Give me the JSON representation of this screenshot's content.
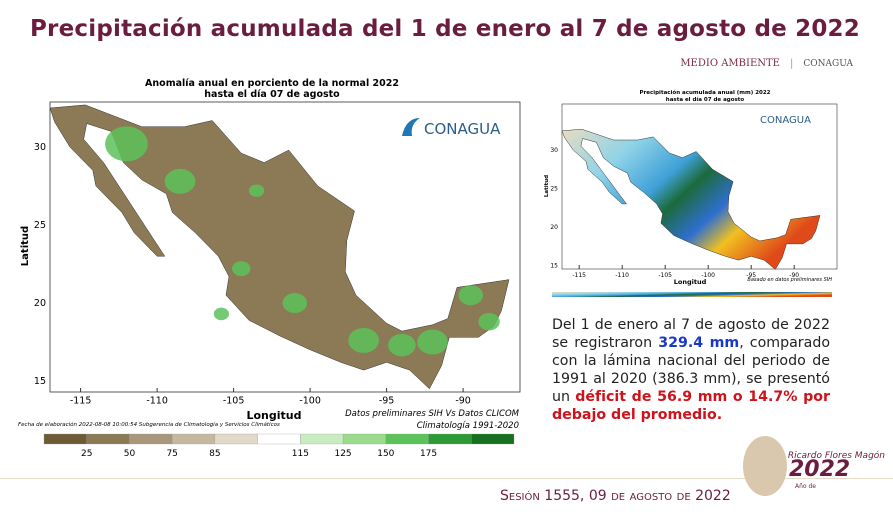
{
  "header": {
    "title": "Precipitación acumulada del 1 de enero al 7 de agosto de 2022",
    "logo_left": "MEDIO AMBIENTE",
    "logo_right": "CONAGUA"
  },
  "left_map": {
    "title": "Anomalía anual en porciento de la normal 2022",
    "subtitle": "hasta el día 07 de agosto",
    "brand": "CONAGUA",
    "x_label": "Longitud",
    "y_label": "Latitud",
    "x_ticks": [
      "-115",
      "-110",
      "-105",
      "-100",
      "-95",
      "-90"
    ],
    "y_ticks": [
      "30",
      "25",
      "20",
      "15"
    ],
    "note_left": "Fecha de elaboración 2022-08-08 10:00:54 Subgerencia de Climatología y Servicios Climáticos",
    "note_right": [
      "Datos preliminares SIH Vs Datos CLICOM",
      "Climatología 1991-2020"
    ],
    "legend_ticks": [
      "25",
      "50",
      "75",
      "85",
      "115",
      "125",
      "150",
      "175"
    ]
  },
  "right_map": {
    "title": "Precipitación acumulada anual (mm) 2022",
    "subtitle": "hasta el día 07 de agosto",
    "brand": "CONAGUA",
    "x_label": "Longitud",
    "y_label": "Latitud",
    "x_ticks": [
      "-115",
      "-110",
      "-105",
      "-100",
      "-95",
      "-90"
    ],
    "y_ticks": [
      "30",
      "25",
      "20",
      "15"
    ],
    "note": "Basado en datos preliminares SIH"
  },
  "summary": [
    "Del 1 de enero al 7 de agosto de 2022 se registraron ",
    "329.4 mm",
    ", comparado con la lámina nacional del periodo de 1991 al 2020 (386.3 mm), se presentó un ",
    "déficit de 56.9 mm o 14.7% por debajo del promedio."
  ],
  "footer": "Sesión 1555, 09 de agosto de 2022",
  "badge": {
    "year": "2022",
    "prefix": "Año de",
    "name": "Ricardo Flores Magón"
  }
}
